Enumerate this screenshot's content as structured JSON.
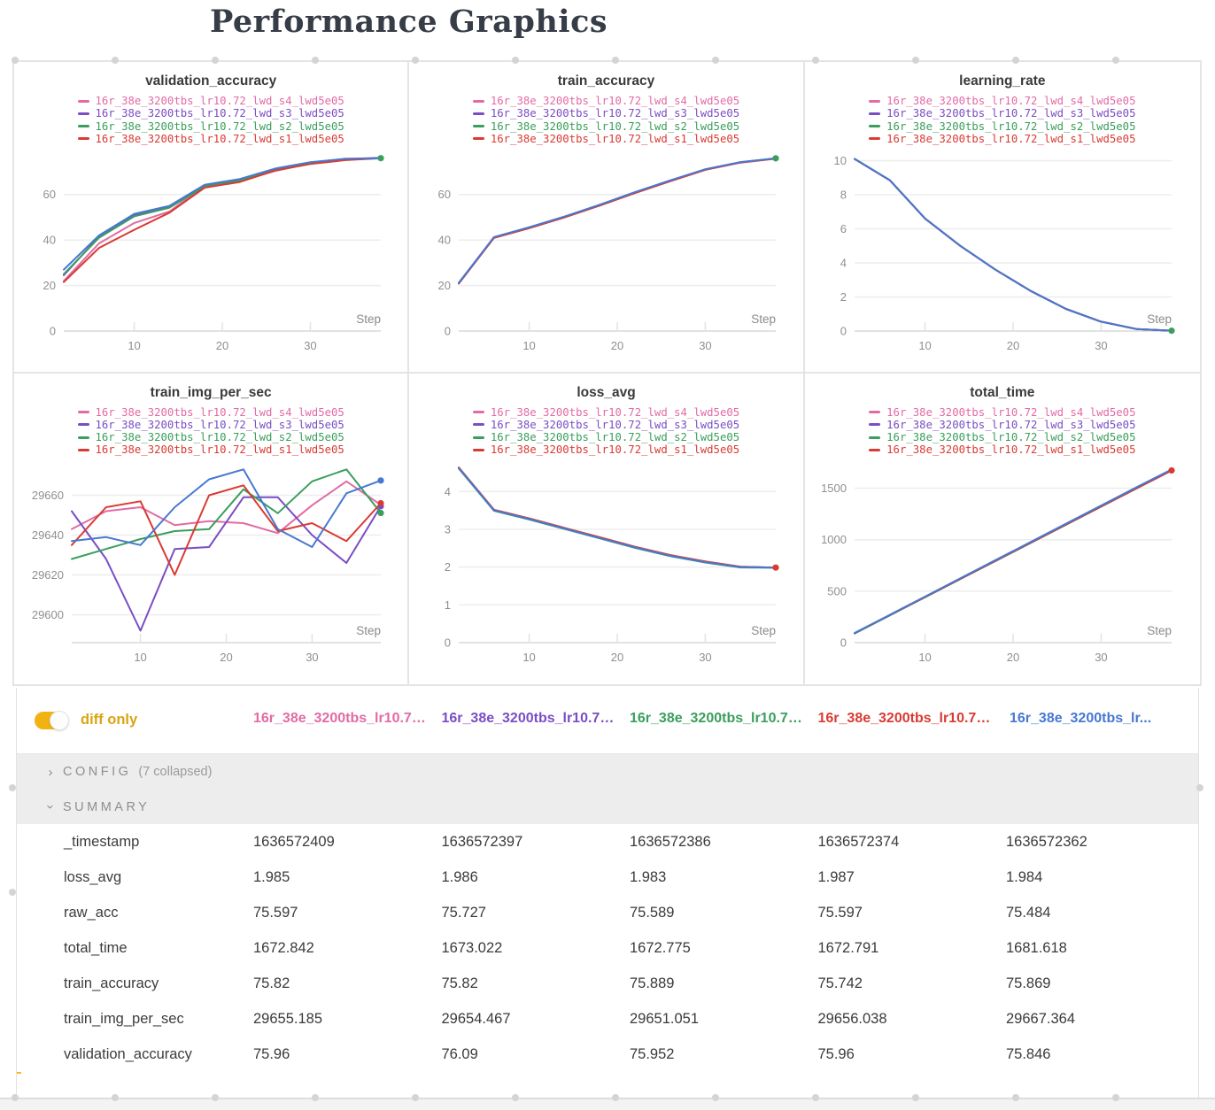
{
  "title": "Performance Graphics",
  "runs": [
    {
      "name": "16r_38e_3200tbs_lr10.72_lwd_s4_lwd5e05",
      "color": "#e26ba4"
    },
    {
      "name": "16r_38e_3200tbs_lr10.72_lwd_s3_lwd5e05",
      "color": "#7a4dc4"
    },
    {
      "name": "16r_38e_3200tbs_lr10.72_lwd_s2_lwd5e05",
      "color": "#3a9e5d"
    },
    {
      "name": "16r_38e_3200tbs_lr10.72_lwd_s1_lwd5e05",
      "color": "#d93b33"
    },
    {
      "name": "16r_38e_3200tbs_lr...",
      "color": "#4778d1"
    }
  ],
  "chart_data": [
    {
      "type": "line",
      "key": "validation_accuracy",
      "title": "validation_accuracy",
      "xlabel": "Step",
      "xticks": [
        10,
        20,
        30
      ],
      "xlim": [
        2,
        38
      ],
      "yticks": [
        0,
        20,
        40,
        60
      ],
      "ylim": [
        0,
        80.5
      ],
      "x": [
        2,
        6,
        10,
        14,
        18,
        22,
        26,
        30,
        34,
        38
      ],
      "series": [
        {
          "run": 0,
          "values": [
            22.0,
            38.5,
            47.5,
            52.5,
            63.8,
            66.0,
            70.3,
            73.6,
            75.4,
            75.96
          ]
        },
        {
          "run": 1,
          "values": [
            24.5,
            41.5,
            50.8,
            54.6,
            63.9,
            66.4,
            71.1,
            74.0,
            75.6,
            76.09
          ]
        },
        {
          "run": 2,
          "values": [
            25.0,
            41.0,
            50.4,
            54.2,
            63.5,
            66.1,
            70.9,
            73.9,
            75.5,
            75.952
          ]
        },
        {
          "run": 3,
          "values": [
            21.5,
            36.5,
            44.5,
            52.0,
            63.0,
            65.5,
            70.5,
            73.4,
            75.1,
            75.96
          ]
        },
        {
          "run": 4,
          "values": [
            27.0,
            42.0,
            51.5,
            55.0,
            64.3,
            66.8,
            71.4,
            74.2,
            75.7,
            75.846
          ]
        }
      ],
      "end_dots": [
        2
      ]
    },
    {
      "type": "line",
      "key": "train_accuracy",
      "title": "train_accuracy",
      "xlabel": "Step",
      "xticks": [
        10,
        20,
        30
      ],
      "xlim": [
        2,
        38
      ],
      "yticks": [
        0,
        20,
        40,
        60
      ],
      "ylim": [
        0,
        80.5
      ],
      "x": [
        2,
        6,
        10,
        14,
        18,
        22,
        26,
        30,
        34,
        38
      ],
      "series": [
        {
          "run": 0,
          "values": [
            20.8,
            41.0,
            45.3,
            50.0,
            55.2,
            60.7,
            65.9,
            70.9,
            74.1,
            75.82
          ]
        },
        {
          "run": 1,
          "values": [
            21.0,
            41.2,
            45.5,
            50.2,
            55.4,
            60.9,
            66.1,
            71.0,
            74.2,
            75.82
          ]
        },
        {
          "run": 2,
          "values": [
            21.2,
            41.1,
            45.4,
            50.1,
            55.3,
            60.8,
            66.0,
            71.0,
            74.15,
            75.889
          ]
        },
        {
          "run": 3,
          "values": [
            20.9,
            40.9,
            45.2,
            49.9,
            55.1,
            60.6,
            65.8,
            70.8,
            74.0,
            75.742
          ]
        },
        {
          "run": 4,
          "values": [
            21.1,
            41.3,
            45.6,
            50.3,
            55.5,
            61.0,
            66.2,
            71.1,
            74.25,
            75.869
          ]
        }
      ],
      "end_dots": [
        2
      ]
    },
    {
      "type": "line",
      "key": "learning_rate",
      "title": "learning_rate",
      "xlabel": "Step",
      "xticks": [
        10,
        20,
        30
      ],
      "xlim": [
        2,
        38
      ],
      "yticks": [
        0,
        2,
        4,
        6,
        8,
        10
      ],
      "ylim": [
        0,
        10.75
      ],
      "x": [
        2,
        6,
        10,
        14,
        18,
        22,
        26,
        30,
        34,
        38
      ],
      "series": [
        {
          "run": 0,
          "values": [
            10.1,
            8.85,
            6.6,
            5.0,
            3.6,
            2.35,
            1.3,
            0.55,
            0.12,
            0.02
          ]
        },
        {
          "run": 1,
          "values": [
            10.1,
            8.85,
            6.6,
            5.0,
            3.6,
            2.35,
            1.3,
            0.55,
            0.12,
            0.02
          ]
        },
        {
          "run": 2,
          "values": [
            10.1,
            8.85,
            6.6,
            5.0,
            3.6,
            2.35,
            1.3,
            0.55,
            0.12,
            0.02
          ]
        },
        {
          "run": 3,
          "values": [
            10.1,
            8.85,
            6.6,
            5.0,
            3.6,
            2.35,
            1.3,
            0.55,
            0.12,
            0.02
          ]
        },
        {
          "run": 4,
          "values": [
            10.1,
            8.85,
            6.6,
            5.0,
            3.6,
            2.35,
            1.3,
            0.55,
            0.12,
            0.02
          ]
        }
      ],
      "end_dots": [
        2
      ]
    },
    {
      "type": "line",
      "key": "train_img_per_sec",
      "title": "train_img_per_sec",
      "xlabel": "Step",
      "xticks": [
        10,
        20,
        30
      ],
      "xlim": [
        2,
        38
      ],
      "yticks": [
        29600,
        29620,
        29640,
        29660
      ],
      "ylim": [
        29586,
        29678
      ],
      "x": [
        2,
        6,
        10,
        14,
        18,
        22,
        26,
        30,
        34,
        38
      ],
      "series": [
        {
          "run": 0,
          "values": [
            29643,
            29652,
            29654,
            29645,
            29647,
            29646,
            29641,
            29655,
            29667,
            29655.2
          ]
        },
        {
          "run": 1,
          "values": [
            29652,
            29628,
            29592,
            29633,
            29634,
            29659,
            29659,
            29640,
            29626,
            29654.5
          ]
        },
        {
          "run": 2,
          "values": [
            29628,
            29633,
            29638,
            29642,
            29643,
            29663,
            29651,
            29667,
            29673,
            29651.1
          ]
        },
        {
          "run": 3,
          "values": [
            29635,
            29654,
            29657,
            29620,
            29660,
            29665,
            29642,
            29646,
            29637,
            29656.0
          ]
        },
        {
          "run": 4,
          "values": [
            29637,
            29639,
            29635,
            29654,
            29668,
            29673,
            29643,
            29634,
            29661,
            29667.4
          ]
        }
      ],
      "end_dots": [
        1,
        2,
        3,
        4
      ]
    },
    {
      "type": "line",
      "key": "loss_avg",
      "title": "loss_avg",
      "xlabel": "Step",
      "xticks": [
        10,
        20,
        30
      ],
      "xlim": [
        2,
        38
      ],
      "yticks": [
        0,
        1,
        2,
        3,
        4
      ],
      "ylim": [
        0,
        4.85
      ],
      "x": [
        2,
        6,
        10,
        14,
        18,
        22,
        26,
        30,
        34,
        38
      ],
      "series": [
        {
          "run": 0,
          "values": [
            4.62,
            3.5,
            3.27,
            3.02,
            2.77,
            2.52,
            2.3,
            2.13,
            2.0,
            1.985
          ]
        },
        {
          "run": 1,
          "values": [
            4.63,
            3.51,
            3.28,
            3.03,
            2.78,
            2.53,
            2.31,
            2.14,
            2.01,
            1.986
          ]
        },
        {
          "run": 2,
          "values": [
            4.61,
            3.49,
            3.26,
            3.01,
            2.76,
            2.51,
            2.29,
            2.12,
            1.99,
            1.983
          ]
        },
        {
          "run": 3,
          "values": [
            4.64,
            3.52,
            3.29,
            3.04,
            2.79,
            2.54,
            2.32,
            2.15,
            2.01,
            1.987
          ]
        },
        {
          "run": 4,
          "values": [
            4.62,
            3.5,
            3.27,
            3.02,
            2.77,
            2.52,
            2.3,
            2.13,
            2.0,
            1.984
          ]
        }
      ],
      "end_dots": [
        3
      ]
    },
    {
      "type": "line",
      "key": "total_time",
      "title": "total_time",
      "xlabel": "Step",
      "xticks": [
        10,
        20,
        30
      ],
      "xlim": [
        2,
        38
      ],
      "yticks": [
        0,
        500,
        1000,
        1500
      ],
      "ylim": [
        0,
        1780
      ],
      "x": [
        2,
        6,
        10,
        14,
        18,
        22,
        26,
        30,
        34,
        38
      ],
      "series": [
        {
          "run": 0,
          "values": [
            90,
            266,
            442,
            618,
            794,
            970,
            1146,
            1322,
            1498,
            1672.842
          ]
        },
        {
          "run": 1,
          "values": [
            92,
            268,
            444,
            620,
            796,
            972,
            1148,
            1324,
            1500,
            1673.022
          ]
        },
        {
          "run": 2,
          "values": [
            89,
            265,
            441,
            617,
            793,
            969,
            1145,
            1321,
            1497,
            1672.775
          ]
        },
        {
          "run": 3,
          "values": [
            91,
            267,
            443,
            619,
            795,
            971,
            1147,
            1323,
            1499,
            1672.791
          ]
        },
        {
          "run": 4,
          "values": [
            93,
            270,
            447,
            624,
            801,
            978,
            1155,
            1332,
            1509,
            1681.618
          ]
        }
      ],
      "end_dots": [
        3
      ]
    }
  ],
  "controls": {
    "diff_only_label": "diff only",
    "diff_only_state": "on"
  },
  "sections": {
    "config_label": "CONFIG",
    "config_note": "(7 collapsed)",
    "summary_label": "SUMMARY"
  },
  "summary_table": {
    "rows": [
      {
        "label": "_timestamp",
        "values": [
          "1636572409",
          "1636572397",
          "1636572386",
          "1636572374",
          "1636572362"
        ]
      },
      {
        "label": "loss_avg",
        "values": [
          "1.985",
          "1.986",
          "1.983",
          "1.987",
          "1.984"
        ]
      },
      {
        "label": "raw_acc",
        "values": [
          "75.597",
          "75.727",
          "75.589",
          "75.597",
          "75.484"
        ]
      },
      {
        "label": "total_time",
        "values": [
          "1672.842",
          "1673.022",
          "1672.775",
          "1672.791",
          "1681.618"
        ]
      },
      {
        "label": "train_accuracy",
        "values": [
          "75.82",
          "75.82",
          "75.889",
          "75.742",
          "75.869"
        ]
      },
      {
        "label": "train_img_per_sec",
        "values": [
          "29655.185",
          "29654.467",
          "29651.051",
          "29656.038",
          "29667.364"
        ]
      },
      {
        "label": "validation_accuracy",
        "values": [
          "75.96",
          "76.09",
          "75.952",
          "75.96",
          "75.846"
        ]
      }
    ]
  }
}
